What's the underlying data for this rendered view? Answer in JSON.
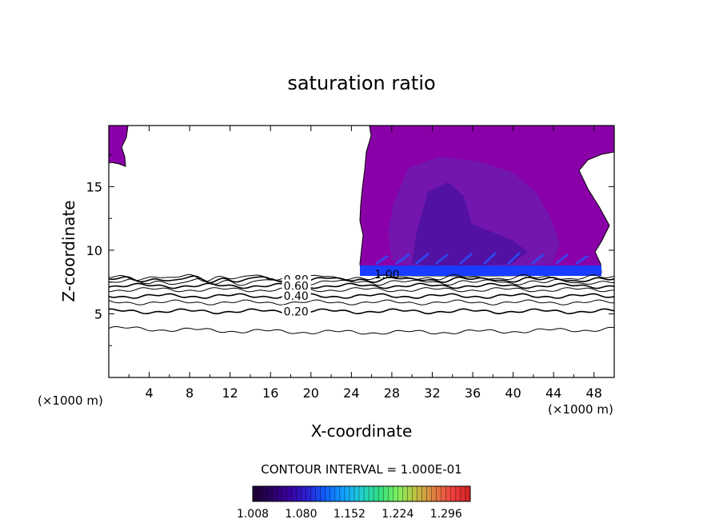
{
  "chart_data": {
    "type": "contour",
    "title": "saturation ratio",
    "xlabel": "X-coordinate",
    "ylabel": "Z-coordinate",
    "x_unit_left": "(×1000 m)",
    "x_unit_right": "(×1000 m)",
    "xlim": [
      0,
      50
    ],
    "ylim": [
      0,
      19.8
    ],
    "x_ticks": [
      "4",
      "8",
      "12",
      "16",
      "20",
      "24",
      "28",
      "32",
      "36",
      "40",
      "44",
      "48"
    ],
    "y_ticks": [
      "5",
      "10",
      "15"
    ],
    "x_tick_values": [
      4,
      8,
      12,
      16,
      20,
      24,
      28,
      32,
      36,
      40,
      44,
      48
    ],
    "y_tick_values": [
      5,
      10,
      15
    ],
    "contour_interval_text": "CONTOUR INTERVAL = 1.000E-01",
    "contour_labels": [
      {
        "text": "0.80",
        "x": 17.3,
        "z": 7.7
      },
      {
        "text": "0.60",
        "x": 17.3,
        "z": 7.2
      },
      {
        "text": "0.40",
        "x": 17.3,
        "z": 6.4
      },
      {
        "text": "0.20",
        "x": 17.3,
        "z": 5.2
      },
      {
        "text": "1.00",
        "x": 26.3,
        "z": 8.1
      }
    ],
    "contour_levels": [
      {
        "level": 0.1,
        "z": 3.8
      },
      {
        "level": 0.2,
        "z": 5.2
      },
      {
        "level": 0.3,
        "z": 5.9
      },
      {
        "level": 0.4,
        "z": 6.4
      },
      {
        "level": 0.5,
        "z": 6.9
      },
      {
        "level": 0.6,
        "z": 7.2
      },
      {
        "level": 0.7,
        "z": 7.5
      },
      {
        "level": 0.8,
        "z": 7.7
      },
      {
        "level": 0.9,
        "z": 7.85
      }
    ],
    "colorbar": {
      "ticks": [
        "1.008",
        "1.080",
        "1.152",
        "1.224",
        "1.296"
      ],
      "tick_values": [
        1.008,
        1.08,
        1.152,
        1.224,
        1.296
      ],
      "range": [
        1.008,
        1.332
      ],
      "colors": [
        "#1a0030",
        "#2a0060",
        "#3a00a0",
        "#2a20d0",
        "#1060ff",
        "#10a0ff",
        "#20d0d0",
        "#30e080",
        "#80f060",
        "#c0c040",
        "#e08040",
        "#f04040",
        "#d02020"
      ]
    },
    "colors": {
      "supersat_fill": "#8a00a8",
      "mid_fill": "#6a20b0",
      "deep_fill": "#4a10a0",
      "base_band": "#1a3cff"
    }
  }
}
